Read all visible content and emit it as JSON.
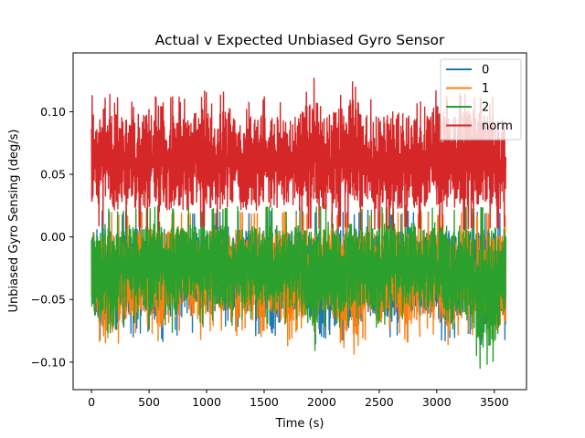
{
  "chart_data": {
    "type": "line",
    "title": "Actual v Expected Unbiased Gyro Sensor",
    "xlabel": "Time (s)",
    "ylabel": "Unbiased Gyro Sensing (deg/s)",
    "xlim": [
      -160,
      3780
    ],
    "ylim": [
      -0.122,
      0.147
    ],
    "x_ticks": [
      0,
      500,
      1000,
      1500,
      2000,
      2500,
      3000,
      3500
    ],
    "y_ticks": [
      -0.1,
      -0.05,
      0.0,
      0.05,
      0.1
    ],
    "x_tick_labels": [
      "0",
      "500",
      "1000",
      "1500",
      "2000",
      "2500",
      "3000",
      "3500"
    ],
    "y_tick_labels": [
      "−0.10",
      "−0.05",
      "0.00",
      "0.05",
      "0.10"
    ],
    "legend_position": "top-right",
    "grid": false,
    "series": [
      {
        "name": "0",
        "color": "#1f77b4",
        "x": [
          0,
          120,
          240,
          360,
          480,
          600,
          720,
          840,
          960,
          1080,
          1200,
          1320,
          1440,
          1560,
          1680,
          1800,
          1920,
          2040,
          2160,
          2280,
          2400,
          2520,
          2640,
          2760,
          2880,
          3000,
          3120,
          3240,
          3360,
          3480,
          3600
        ],
        "max": [
          0.02,
          0.022,
          0.018,
          0.021,
          0.019,
          0.022,
          0.02,
          0.018,
          0.021,
          0.019,
          0.022,
          0.02,
          0.018,
          0.021,
          0.019,
          0.022,
          0.02,
          0.018,
          0.021,
          0.019,
          0.022,
          0.02,
          0.018,
          0.021,
          0.019,
          0.022,
          0.02,
          0.018,
          0.021,
          0.019,
          0.02
        ],
        "min": [
          -0.071,
          -0.097,
          -0.093,
          -0.08,
          -0.075,
          -0.086,
          -0.078,
          -0.082,
          -0.074,
          -0.079,
          -0.07,
          -0.073,
          -0.083,
          -0.076,
          -0.088,
          -0.072,
          -0.085,
          -0.101,
          -0.079,
          -0.097,
          -0.076,
          -0.08,
          -0.085,
          -0.074,
          -0.078,
          -0.082,
          -0.085,
          -0.073,
          -0.088,
          -0.09,
          -0.085
        ]
      },
      {
        "name": "1",
        "color": "#ff7f0e",
        "x": [
          0,
          120,
          240,
          360,
          480,
          600,
          720,
          840,
          960,
          1080,
          1200,
          1320,
          1440,
          1560,
          1680,
          1800,
          1920,
          2040,
          2160,
          2280,
          2400,
          2520,
          2640,
          2760,
          2880,
          3000,
          3120,
          3240,
          3360,
          3480,
          3600
        ],
        "max": [
          0.018,
          0.02,
          0.019,
          0.017,
          0.021,
          0.018,
          0.02,
          0.019,
          0.017,
          0.02,
          0.018,
          0.021,
          0.019,
          0.017,
          0.02,
          0.018,
          0.019,
          0.021,
          0.017,
          0.02,
          0.018,
          0.019,
          0.021,
          0.017,
          0.02,
          0.018,
          0.019,
          0.021,
          0.017,
          0.02,
          0.018
        ],
        "min": [
          -0.07,
          -0.103,
          -0.085,
          -0.078,
          -0.072,
          -0.09,
          -0.079,
          -0.074,
          -0.088,
          -0.071,
          -0.082,
          -0.077,
          -0.085,
          -0.073,
          -0.09,
          -0.078,
          -0.083,
          -0.075,
          -0.086,
          -0.098,
          -0.079,
          -0.084,
          -0.074,
          -0.089,
          -0.077,
          -0.081,
          -0.09,
          -0.078,
          -0.086,
          -0.092,
          -0.093
        ]
      },
      {
        "name": "2",
        "color": "#2ca02c",
        "x": [
          0,
          120,
          240,
          360,
          480,
          600,
          720,
          840,
          960,
          1080,
          1200,
          1320,
          1440,
          1560,
          1680,
          1800,
          1920,
          2040,
          2160,
          2280,
          2400,
          2520,
          2640,
          2760,
          2880,
          3000,
          3120,
          3240,
          3360,
          3480,
          3600
        ],
        "max": [
          0.022,
          0.025,
          0.021,
          0.024,
          0.023,
          0.026,
          0.022,
          0.025,
          0.021,
          0.024,
          0.023,
          0.026,
          0.022,
          0.025,
          0.021,
          0.024,
          0.023,
          0.026,
          0.022,
          0.025,
          0.021,
          0.024,
          0.023,
          0.026,
          0.022,
          0.025,
          0.021,
          0.024,
          0.023,
          0.026,
          0.022
        ],
        "min": [
          -0.086,
          -0.08,
          -0.072,
          -0.068,
          -0.075,
          -0.07,
          -0.078,
          -0.066,
          -0.073,
          -0.069,
          -0.076,
          -0.071,
          -0.065,
          -0.074,
          -0.07,
          -0.068,
          -0.102,
          -0.072,
          -0.076,
          -0.069,
          -0.074,
          -0.071,
          -0.066,
          -0.075,
          -0.07,
          -0.068,
          -0.073,
          -0.078,
          -0.105,
          -0.11,
          -0.072
        ]
      },
      {
        "name": "norm",
        "color": "#d62728",
        "x": [
          0,
          120,
          240,
          360,
          480,
          600,
          720,
          840,
          960,
          1080,
          1200,
          1320,
          1440,
          1560,
          1680,
          1800,
          1920,
          2040,
          2160,
          2280,
          2400,
          2520,
          2640,
          2760,
          2880,
          3000,
          3120,
          3240,
          3360,
          3480,
          3600
        ],
        "max": [
          0.117,
          0.118,
          0.112,
          0.109,
          0.12,
          0.111,
          0.113,
          0.11,
          0.118,
          0.112,
          0.121,
          0.109,
          0.114,
          0.111,
          0.117,
          0.11,
          0.134,
          0.112,
          0.118,
          0.13,
          0.113,
          0.111,
          0.116,
          0.114,
          0.11,
          0.122,
          0.112,
          0.116,
          0.119,
          0.113,
          0.111
        ],
        "min": [
          0.01,
          0.008,
          0.006,
          0.009,
          0.007,
          0.005,
          0.008,
          0.006,
          0.009,
          0.007,
          0.005,
          0.008,
          0.006,
          0.009,
          0.007,
          0.005,
          0.008,
          0.006,
          0.009,
          0.007,
          0.005,
          0.008,
          0.006,
          0.009,
          0.007,
          0.005,
          0.008,
          0.006,
          0.009,
          0.007,
          0.008
        ]
      }
    ]
  }
}
